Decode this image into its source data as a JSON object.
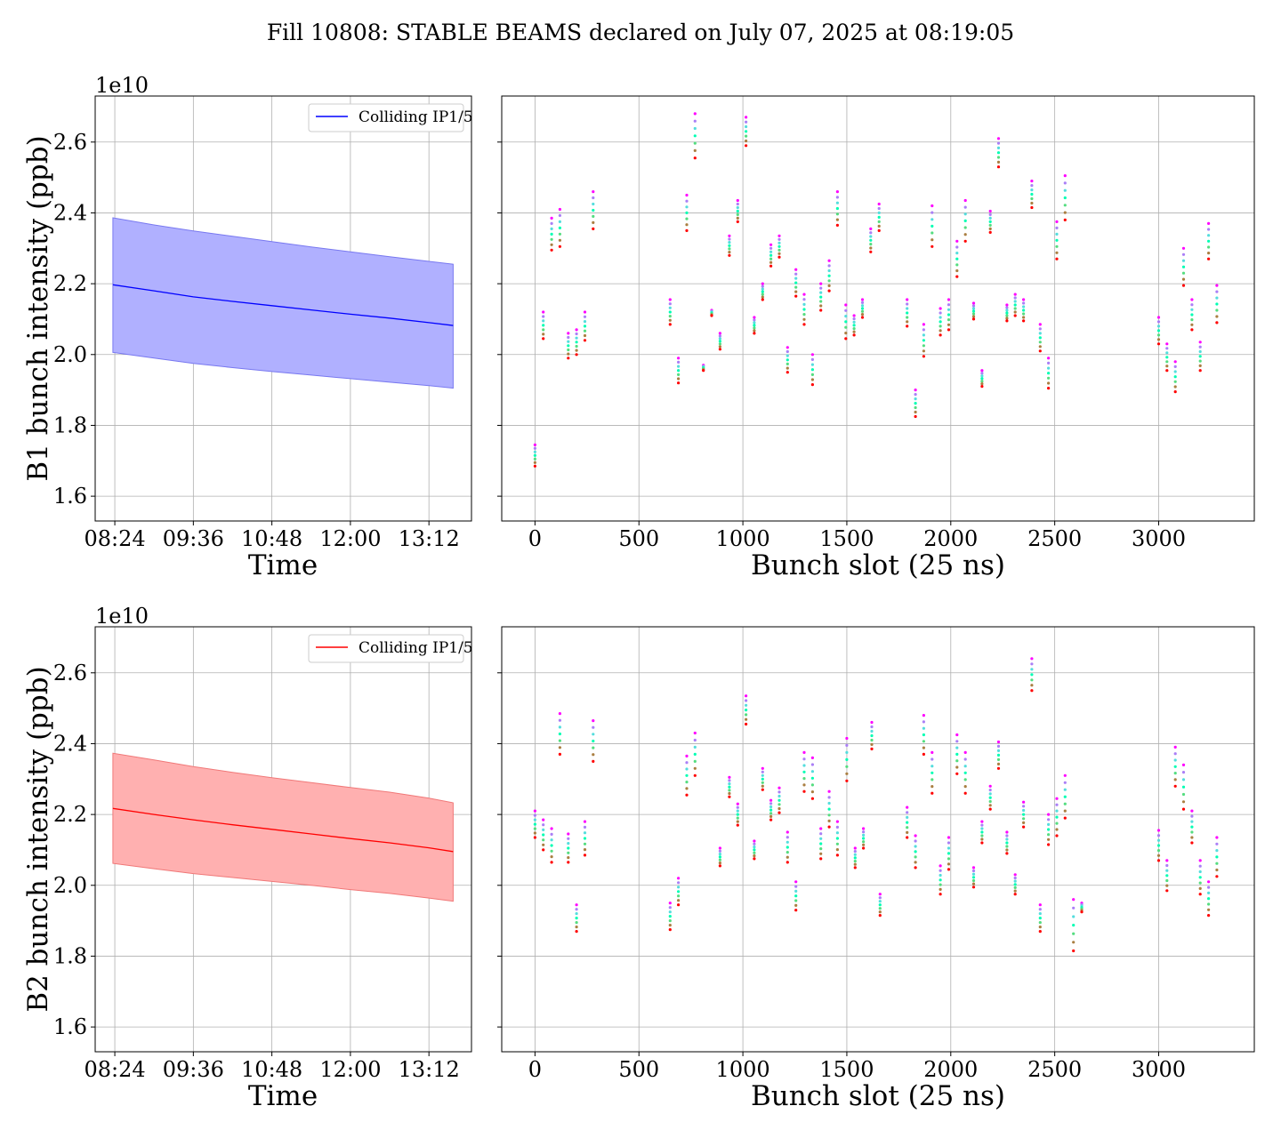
{
  "figure": {
    "suptitle": "Fill 10808: STABLE BEAMS declared on July 07, 2025 at 08:19:05"
  },
  "colors": {
    "b1_line": "#0000ff",
    "b1_fill": "#b0b0ff",
    "b1_fill_edge": "#7878f0",
    "b2_line": "#ff0000",
    "b2_fill": "#ffb0b0",
    "b2_fill_edge": "#f07878",
    "grid": "#b0b0b0",
    "scatter_colormap": "rainbow"
  },
  "chart_data": [
    {
      "id": "b1_time",
      "type": "area",
      "xlabel": "Time",
      "ylabel": "B1 bunch intensity (ppb)",
      "y_offset_text": "1e10",
      "x_ticks": [
        "08:24",
        "09:36",
        "10:48",
        "12:00",
        "13:12"
      ],
      "x_tick_values": [
        8.4,
        9.6,
        10.8,
        12.0,
        13.2
      ],
      "xlim": [
        8.1,
        13.85
      ],
      "ylim": [
        1.53,
        2.73
      ],
      "y_ticks": [
        "1.6",
        "1.8",
        "2.0",
        "2.2",
        "2.4",
        "2.6"
      ],
      "y_tick_values": [
        1.6,
        1.8,
        2.0,
        2.2,
        2.4,
        2.6
      ],
      "grid": true,
      "legend": {
        "entries": [
          "Colliding IP1/5"
        ],
        "placement": "top-right"
      },
      "series": [
        {
          "name": "Colliding IP1/5",
          "x": [
            8.37,
            9.0,
            9.6,
            10.2,
            10.8,
            11.4,
            12.0,
            12.6,
            13.2,
            13.57
          ],
          "y": [
            2.197,
            2.18,
            2.163,
            2.15,
            2.138,
            2.126,
            2.114,
            2.103,
            2.09,
            2.082
          ],
          "upper": [
            2.386,
            2.366,
            2.349,
            2.334,
            2.319,
            2.304,
            2.29,
            2.276,
            2.263,
            2.255
          ],
          "lower": [
            2.006,
            1.99,
            1.975,
            1.963,
            1.952,
            1.942,
            1.932,
            1.922,
            1.912,
            1.905
          ]
        }
      ]
    },
    {
      "id": "b1_slot",
      "type": "scatter",
      "xlabel": "Bunch slot (25 ns)",
      "xlim": [
        -160,
        3460
      ],
      "ylim": [
        1.53,
        2.73
      ],
      "x_ticks": [
        "0",
        "500",
        "1000",
        "1500",
        "2000",
        "2500",
        "3000"
      ],
      "x_tick_values": [
        0,
        500,
        1000,
        1500,
        2000,
        2500,
        3000
      ],
      "grid": true,
      "points": {
        "x": [
          0,
          40,
          80,
          120,
          160,
          200,
          240,
          280,
          650,
          690,
          730,
          770,
          810,
          850,
          890,
          935,
          975,
          1015,
          1055,
          1095,
          1135,
          1175,
          1215,
          1255,
          1295,
          1335,
          1375,
          1415,
          1455,
          1495,
          1535,
          1575,
          1615,
          1655,
          1790,
          1830,
          1870,
          1910,
          1950,
          1990,
          2030,
          2070,
          2110,
          2150,
          2190,
          2230,
          2270,
          2310,
          2350,
          2390,
          2430,
          2470,
          2510,
          2550,
          3000,
          3040,
          3080,
          3120,
          3160,
          3200,
          3240,
          3280
        ],
        "top": [
          1.745,
          2.12,
          2.385,
          2.41,
          2.06,
          2.07,
          2.12,
          2.46,
          2.155,
          1.99,
          2.45,
          2.68,
          1.97,
          2.125,
          2.06,
          2.335,
          2.435,
          2.67,
          2.105,
          2.2,
          2.31,
          2.335,
          2.02,
          2.24,
          2.17,
          2.0,
          2.2,
          2.265,
          2.46,
          2.14,
          2.11,
          2.155,
          2.355,
          2.425,
          2.155,
          1.9,
          2.085,
          2.42,
          2.13,
          2.155,
          2.32,
          2.435,
          2.145,
          1.955,
          2.405,
          2.61,
          2.14,
          2.17,
          2.155,
          2.49,
          2.085,
          1.99,
          2.375,
          2.505,
          2.105,
          2.03,
          1.98,
          2.3,
          2.155,
          2.035,
          2.37,
          2.195
        ],
        "bottom": [
          1.685,
          2.045,
          2.295,
          2.305,
          1.99,
          2.0,
          2.04,
          2.355,
          2.085,
          1.92,
          2.35,
          2.555,
          1.955,
          2.11,
          2.015,
          2.28,
          2.375,
          2.59,
          2.06,
          2.155,
          2.25,
          2.275,
          1.95,
          2.165,
          2.085,
          1.915,
          2.125,
          2.18,
          2.365,
          2.045,
          2.055,
          2.105,
          2.29,
          2.35,
          2.08,
          1.825,
          1.995,
          2.305,
          2.055,
          2.07,
          2.22,
          2.32,
          2.1,
          1.91,
          2.345,
          2.53,
          2.095,
          2.11,
          2.095,
          2.415,
          2.01,
          1.905,
          2.27,
          2.38,
          2.03,
          1.955,
          1.895,
          2.195,
          2.07,
          1.955,
          2.27,
          2.09
        ],
        "dots_per_train": 7
      }
    },
    {
      "id": "b2_time",
      "type": "area",
      "xlabel": "Time",
      "ylabel": "B2 bunch intensity (ppb)",
      "y_offset_text": "1e10",
      "x_ticks": [
        "08:24",
        "09:36",
        "10:48",
        "12:00",
        "13:12"
      ],
      "x_tick_values": [
        8.4,
        9.6,
        10.8,
        12.0,
        13.2
      ],
      "xlim": [
        8.1,
        13.85
      ],
      "ylim": [
        1.53,
        2.73
      ],
      "y_ticks": [
        "1.6",
        "1.8",
        "2.0",
        "2.2",
        "2.4",
        "2.6"
      ],
      "y_tick_values": [
        1.6,
        1.8,
        2.0,
        2.2,
        2.4,
        2.6
      ],
      "grid": true,
      "legend": {
        "entries": [
          "Colliding IP1/5"
        ],
        "placement": "top-right"
      },
      "series": [
        {
          "name": "Colliding IP1/5",
          "x": [
            8.37,
            9.0,
            9.6,
            10.2,
            10.8,
            11.4,
            12.0,
            12.6,
            13.2,
            13.57
          ],
          "y": [
            2.217,
            2.2,
            2.185,
            2.171,
            2.158,
            2.145,
            2.132,
            2.12,
            2.106,
            2.095
          ],
          "upper": [
            2.373,
            2.354,
            2.335,
            2.319,
            2.304,
            2.29,
            2.276,
            2.263,
            2.246,
            2.233
          ],
          "lower": [
            2.062,
            2.047,
            2.033,
            2.022,
            2.011,
            2.0,
            1.988,
            1.977,
            1.964,
            1.955
          ]
        }
      ]
    },
    {
      "id": "b2_slot",
      "type": "scatter",
      "xlabel": "Bunch slot (25 ns)",
      "xlim": [
        -160,
        3460
      ],
      "ylim": [
        1.53,
        2.73
      ],
      "x_ticks": [
        "0",
        "500",
        "1000",
        "1500",
        "2000",
        "2500",
        "3000"
      ],
      "x_tick_values": [
        0,
        500,
        1000,
        1500,
        2000,
        2500,
        3000
      ],
      "grid": true,
      "points": {
        "x": [
          0,
          40,
          80,
          120,
          160,
          200,
          240,
          280,
          650,
          690,
          730,
          770,
          890,
          935,
          975,
          1015,
          1055,
          1095,
          1135,
          1175,
          1215,
          1255,
          1295,
          1335,
          1375,
          1415,
          1455,
          1500,
          1540,
          1580,
          1620,
          1660,
          1790,
          1830,
          1870,
          1910,
          1950,
          1990,
          2030,
          2070,
          2110,
          2150,
          2190,
          2230,
          2270,
          2310,
          2350,
          2390,
          2430,
          2470,
          2510,
          2550,
          2590,
          2630,
          3000,
          3040,
          3080,
          3120,
          3160,
          3200,
          3240,
          3280
        ],
        "top": [
          2.21,
          2.185,
          2.16,
          2.485,
          2.145,
          1.945,
          2.18,
          2.465,
          1.95,
          2.02,
          2.365,
          2.43,
          2.105,
          2.305,
          2.23,
          2.535,
          2.125,
          2.33,
          2.24,
          2.275,
          2.15,
          2.01,
          2.375,
          2.36,
          2.16,
          2.265,
          2.18,
          2.415,
          2.105,
          2.16,
          2.46,
          1.975,
          2.22,
          2.14,
          2.48,
          2.375,
          2.055,
          2.135,
          2.425,
          2.375,
          2.05,
          2.18,
          2.28,
          2.405,
          2.15,
          2.03,
          2.235,
          2.64,
          1.945,
          2.2,
          2.245,
          2.31,
          1.96,
          1.95,
          2.155,
          2.07,
          2.39,
          2.34,
          2.21,
          2.07,
          2.01,
          2.135
        ],
        "bottom": [
          2.135,
          2.1,
          2.065,
          2.37,
          2.065,
          1.87,
          2.085,
          2.35,
          1.875,
          1.945,
          2.255,
          2.31,
          2.055,
          2.25,
          2.17,
          2.455,
          2.075,
          2.27,
          2.185,
          2.205,
          2.065,
          1.93,
          2.265,
          2.245,
          2.075,
          2.165,
          2.085,
          2.295,
          2.05,
          2.105,
          2.385,
          1.915,
          2.135,
          2.05,
          2.37,
          2.26,
          1.975,
          2.045,
          2.315,
          2.26,
          1.995,
          2.12,
          2.215,
          2.33,
          2.09,
          1.975,
          2.165,
          2.55,
          1.87,
          2.115,
          2.14,
          2.19,
          1.815,
          1.925,
          2.07,
          1.985,
          2.28,
          2.215,
          2.12,
          1.975,
          1.915,
          2.025
        ],
        "dots_per_train": 7
      }
    }
  ]
}
